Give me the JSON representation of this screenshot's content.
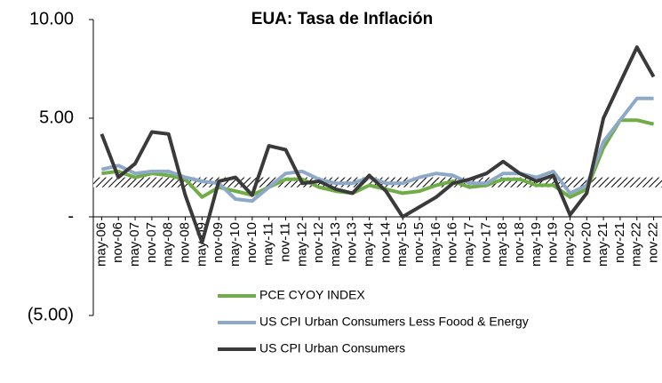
{
  "chart_data": {
    "type": "line",
    "title": "EUA:  Tasa de Inflación",
    "categories": [
      "may-06",
      "nov-06",
      "may-07",
      "nov-07",
      "may-08",
      "nov-08",
      "may-09",
      "nov-09",
      "may-10",
      "nov-10",
      "may-11",
      "nov-11",
      "may-12",
      "nov-12",
      "may-13",
      "nov-13",
      "may-14",
      "nov-14",
      "may-15",
      "nov-15",
      "may-16",
      "nov-16",
      "may-17",
      "nov-17",
      "may-18",
      "nov-18",
      "may-19",
      "nov-19",
      "may-20",
      "nov-20",
      "may-21",
      "nov-21",
      "may-22",
      "nov-22"
    ],
    "series": [
      {
        "name": "PCE CYOY INDEX",
        "color": "#70ad47",
        "values": [
          2.2,
          2.3,
          2.0,
          2.2,
          2.1,
          1.9,
          1.0,
          1.5,
          1.3,
          1.1,
          1.5,
          1.9,
          1.9,
          1.5,
          1.3,
          1.2,
          1.6,
          1.4,
          1.2,
          1.3,
          1.6,
          1.8,
          1.5,
          1.6,
          1.9,
          1.9,
          1.6,
          1.6,
          1.0,
          1.4,
          3.5,
          4.9,
          4.9,
          4.7
        ]
      },
      {
        "name": "US CPI Urban Consumers Less Foood & Energy",
        "color": "#8ea9c8",
        "values": [
          2.4,
          2.6,
          2.2,
          2.3,
          2.3,
          2.0,
          1.8,
          1.7,
          0.9,
          0.8,
          1.5,
          2.2,
          2.3,
          1.9,
          1.7,
          1.7,
          2.0,
          1.7,
          1.7,
          2.0,
          2.2,
          2.1,
          1.7,
          1.7,
          2.2,
          2.2,
          2.0,
          2.3,
          1.2,
          1.6,
          3.8,
          4.9,
          6.0,
          6.0
        ]
      },
      {
        "name": "US CPI Urban Consumers",
        "color": "#3a3a3a",
        "values": [
          4.2,
          2.0,
          2.7,
          4.3,
          4.2,
          1.1,
          -1.3,
          1.8,
          2.0,
          1.1,
          3.6,
          3.4,
          1.7,
          1.8,
          1.4,
          1.2,
          2.1,
          1.3,
          0.0,
          0.5,
          1.0,
          1.7,
          1.9,
          2.2,
          2.8,
          2.2,
          1.8,
          2.1,
          0.1,
          1.2,
          5.0,
          6.8,
          8.6,
          7.1
        ]
      }
    ],
    "shaded_band": [
      1.5,
      2.0
    ],
    "ylim": [
      -5,
      10
    ],
    "yticks": [
      {
        "value": 10,
        "label": "10.00"
      },
      {
        "value": 5,
        "label": "5.00"
      },
      {
        "value": 0,
        "label": "-"
      },
      {
        "value": -5,
        "label": "(5.00)"
      }
    ]
  }
}
